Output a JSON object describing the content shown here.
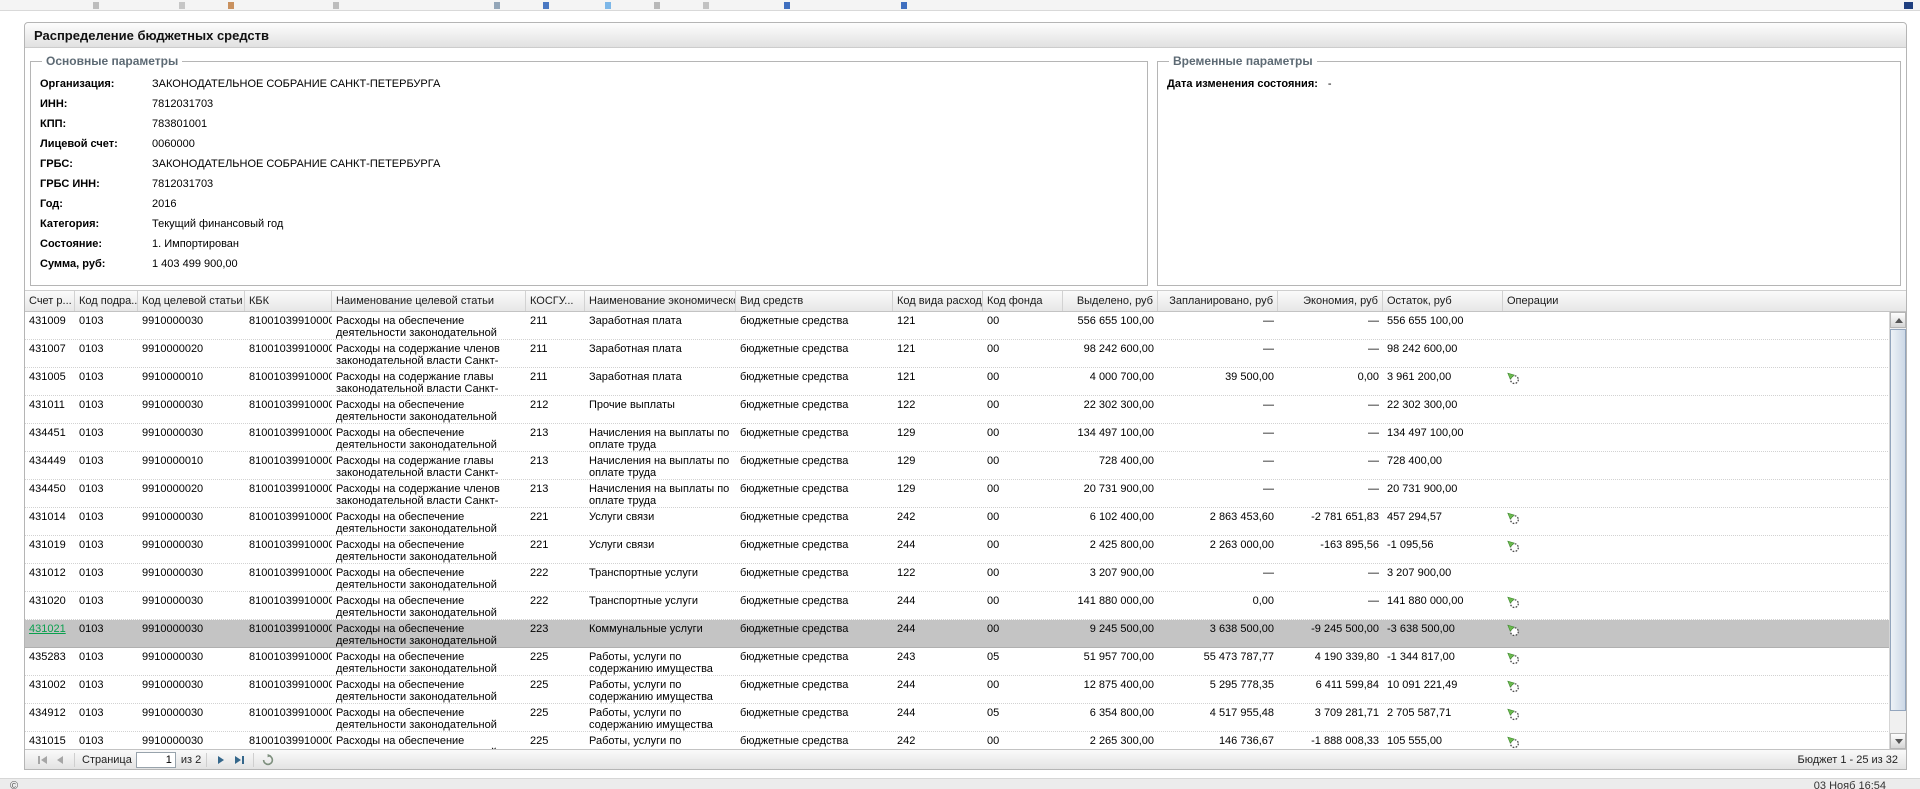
{
  "window": {
    "title": "Распределение бюджетных средств"
  },
  "main_params": {
    "legend": "Основные параметры",
    "fields": [
      {
        "label": "Организация:",
        "value": "ЗАКОНОДАТЕЛЬНОЕ СОБРАНИЕ САНКТ-ПЕТЕРБУРГА"
      },
      {
        "label": "ИНН:",
        "value": "7812031703"
      },
      {
        "label": "КПП:",
        "value": "783801001"
      },
      {
        "label": "Лицевой счет:",
        "value": "0060000"
      },
      {
        "label": "ГРБС:",
        "value": "ЗАКОНОДАТЕЛЬНОЕ СОБРАНИЕ САНКТ-ПЕТЕРБУРГА"
      },
      {
        "label": "ГРБС ИНН:",
        "value": "7812031703"
      },
      {
        "label": "Год:",
        "value": "2016"
      },
      {
        "label": "Категория:",
        "value": "Текущий финансовый год"
      },
      {
        "label": "Состояние:",
        "value": "1. Импортирован"
      },
      {
        "label": "Сумма, руб:",
        "value": "1 403 499 900,00"
      }
    ]
  },
  "time_params": {
    "legend": "Временные параметры",
    "fields": [
      {
        "label": "Дата изменения состояния:",
        "value": "-"
      }
    ]
  },
  "grid": {
    "columns": [
      "Счет р...",
      "Код подра...",
      "Код целевой статьи",
      "КБК",
      "Наименование целевой статьи",
      "КОСГУ...",
      "Наименование экономической ...",
      "Вид средств",
      "Код вида расходов",
      "Код фонда",
      "Выделено, руб",
      "Запланировано, руб",
      "Экономия, руб",
      "Остаток, руб",
      "Операции"
    ],
    "op_icon_name": "redistribute-icon",
    "rows": [
      {
        "account": "431009",
        "selected": false,
        "dept": "0103",
        "target_code": "9910000030",
        "kbk": "81001039910000...",
        "target_name": "Расходы на обеспечение деятельности законодательной власти Санкт-Петербурга",
        "kosgu": "211",
        "econ_name": "Заработная плата",
        "fund_type": "бюджетные средства",
        "expense_kind": "121",
        "fund_code": "00",
        "allocated": "556 655 100,00",
        "planned": "—",
        "savings": "—",
        "remainder": "556 655 100,00",
        "has_op": false
      },
      {
        "account": "431007",
        "selected": false,
        "dept": "0103",
        "target_code": "9910000020",
        "kbk": "81001039910000...",
        "target_name": "Расходы на содержание членов законодательной власти Санкт-Петербурга",
        "kosgu": "211",
        "econ_name": "Заработная плата",
        "fund_type": "бюджетные средства",
        "expense_kind": "121",
        "fund_code": "00",
        "allocated": "98 242 600,00",
        "planned": "—",
        "savings": "—",
        "remainder": "98 242 600,00",
        "has_op": false
      },
      {
        "account": "431005",
        "selected": false,
        "dept": "0103",
        "target_code": "9910000010",
        "kbk": "81001039910000...",
        "target_name": "Расходы на содержание главы законодательной власти Санкт-Петербурга",
        "kosgu": "211",
        "econ_name": "Заработная плата",
        "fund_type": "бюджетные средства",
        "expense_kind": "121",
        "fund_code": "00",
        "allocated": "4 000 700,00",
        "planned": "39 500,00",
        "savings": "0,00",
        "remainder": "3 961 200,00",
        "has_op": true
      },
      {
        "account": "431011",
        "selected": false,
        "dept": "0103",
        "target_code": "9910000030",
        "kbk": "81001039910000...",
        "target_name": "Расходы на обеспечение деятельности законодательной власти Санкт-Петербурга",
        "kosgu": "212",
        "econ_name": "Прочие выплаты",
        "fund_type": "бюджетные средства",
        "expense_kind": "122",
        "fund_code": "00",
        "allocated": "22 302 300,00",
        "planned": "—",
        "savings": "—",
        "remainder": "22 302 300,00",
        "has_op": false
      },
      {
        "account": "434451",
        "selected": false,
        "dept": "0103",
        "target_code": "9910000030",
        "kbk": "81001039910000...",
        "target_name": "Расходы на обеспечение деятельности законодательной власти Санкт-Петербурга",
        "kosgu": "213",
        "econ_name": "Начисления на выплаты по оплате труда",
        "fund_type": "бюджетные средства",
        "expense_kind": "129",
        "fund_code": "00",
        "allocated": "134 497 100,00",
        "planned": "—",
        "savings": "—",
        "remainder": "134 497 100,00",
        "has_op": false
      },
      {
        "account": "434449",
        "selected": false,
        "dept": "0103",
        "target_code": "9910000010",
        "kbk": "81001039910000...",
        "target_name": "Расходы на содержание главы законодательной власти Санкт-Петербурга",
        "kosgu": "213",
        "econ_name": "Начисления на выплаты по оплате труда",
        "fund_type": "бюджетные средства",
        "expense_kind": "129",
        "fund_code": "00",
        "allocated": "728 400,00",
        "planned": "—",
        "savings": "—",
        "remainder": "728 400,00",
        "has_op": false
      },
      {
        "account": "434450",
        "selected": false,
        "dept": "0103",
        "target_code": "9910000020",
        "kbk": "81001039910000...",
        "target_name": "Расходы на содержание членов законодательной власти Санкт-Петербурга",
        "kosgu": "213",
        "econ_name": "Начисления на выплаты по оплате труда",
        "fund_type": "бюджетные средства",
        "expense_kind": "129",
        "fund_code": "00",
        "allocated": "20 731 900,00",
        "planned": "—",
        "savings": "—",
        "remainder": "20 731 900,00",
        "has_op": false
      },
      {
        "account": "431014",
        "selected": false,
        "dept": "0103",
        "target_code": "9910000030",
        "kbk": "81001039910000...",
        "target_name": "Расходы на обеспечение деятельности законодательной власти Санкт-Петербурга",
        "kosgu": "221",
        "econ_name": "Услуги связи",
        "fund_type": "бюджетные средства",
        "expense_kind": "242",
        "fund_code": "00",
        "allocated": "6 102 400,00",
        "planned": "2 863 453,60",
        "savings": "-2 781 651,83",
        "remainder": "457 294,57",
        "has_op": true
      },
      {
        "account": "431019",
        "selected": false,
        "dept": "0103",
        "target_code": "9910000030",
        "kbk": "81001039910000...",
        "target_name": "Расходы на обеспечение деятельности законодательной власти Санкт-Петербурга",
        "kosgu": "221",
        "econ_name": "Услуги связи",
        "fund_type": "бюджетные средства",
        "expense_kind": "244",
        "fund_code": "00",
        "allocated": "2 425 800,00",
        "planned": "2 263 000,00",
        "savings": "-163 895,56",
        "remainder": "-1 095,56",
        "has_op": true
      },
      {
        "account": "431012",
        "selected": false,
        "dept": "0103",
        "target_code": "9910000030",
        "kbk": "81001039910000...",
        "target_name": "Расходы на обеспечение деятельности законодательной власти Санкт-Петербурга",
        "kosgu": "222",
        "econ_name": "Транспортные услуги",
        "fund_type": "бюджетные средства",
        "expense_kind": "122",
        "fund_code": "00",
        "allocated": "3 207 900,00",
        "planned": "—",
        "savings": "—",
        "remainder": "3 207 900,00",
        "has_op": false
      },
      {
        "account": "431020",
        "selected": false,
        "dept": "0103",
        "target_code": "9910000030",
        "kbk": "81001039910000...",
        "target_name": "Расходы на обеспечение деятельности законодательной власти Санкт-Петербурга",
        "kosgu": "222",
        "econ_name": "Транспортные услуги",
        "fund_type": "бюджетные средства",
        "expense_kind": "244",
        "fund_code": "00",
        "allocated": "141 880 000,00",
        "planned": "0,00",
        "savings": "—",
        "remainder": "141 880 000,00",
        "has_op": true
      },
      {
        "account": "431021",
        "selected": true,
        "dept": "0103",
        "target_code": "9910000030",
        "kbk": "81001039910000...",
        "target_name": "Расходы на обеспечение деятельности законодательной власти Санкт-Петербурга",
        "kosgu": "223",
        "econ_name": "Коммунальные услуги",
        "fund_type": "бюджетные средства",
        "expense_kind": "244",
        "fund_code": "00",
        "allocated": "9 245 500,00",
        "planned": "3 638 500,00",
        "savings": "-9 245 500,00",
        "remainder": "-3 638 500,00",
        "has_op": true
      },
      {
        "account": "435283",
        "selected": false,
        "dept": "0103",
        "target_code": "9910000030",
        "kbk": "81001039910000...",
        "target_name": "Расходы на обеспечение деятельности законодательной власти Санкт-Петербурга",
        "kosgu": "225",
        "econ_name": "Работы, услуги по содержанию имущества",
        "fund_type": "бюджетные средства",
        "expense_kind": "243",
        "fund_code": "05",
        "allocated": "51 957 700,00",
        "planned": "55 473 787,77",
        "savings": "4 190 339,80",
        "remainder": "-1 344 817,00",
        "has_op": true
      },
      {
        "account": "431002",
        "selected": false,
        "dept": "0103",
        "target_code": "9910000030",
        "kbk": "81001039910000...",
        "target_name": "Расходы на обеспечение деятельности законодательной власти Санкт-Петербурга",
        "kosgu": "225",
        "econ_name": "Работы, услуги по содержанию имущества",
        "fund_type": "бюджетные средства",
        "expense_kind": "244",
        "fund_code": "00",
        "allocated": "12 875 400,00",
        "planned": "5 295 778,35",
        "savings": "6 411 599,84",
        "remainder": "10 091 221,49",
        "has_op": true
      },
      {
        "account": "434912",
        "selected": false,
        "dept": "0103",
        "target_code": "9910000030",
        "kbk": "81001039910000...",
        "target_name": "Расходы на обеспечение деятельности законодательной власти Санкт-Петербурга",
        "kosgu": "225",
        "econ_name": "Работы, услуги по содержанию имущества",
        "fund_type": "бюджетные средства",
        "expense_kind": "244",
        "fund_code": "05",
        "allocated": "6 354 800,00",
        "planned": "4 517 955,48",
        "savings": "3 709 281,71",
        "remainder": "2 705 587,71",
        "has_op": true
      },
      {
        "account": "431015",
        "selected": false,
        "dept": "0103",
        "target_code": "9910000030",
        "kbk": "81001039910000...",
        "target_name": "Расходы на обеспечение деятельности законодательной власти Санкт-Петербурга",
        "kosgu": "225",
        "econ_name": "Работы, услуги по содержанию имущества",
        "fund_type": "бюджетные средства",
        "expense_kind": "242",
        "fund_code": "00",
        "allocated": "2 265 300,00",
        "planned": "146 736,67",
        "savings": "-1 888 008,33",
        "remainder": "105 555,00",
        "has_op": true
      }
    ]
  },
  "pager": {
    "page_label": "Страница",
    "page_value": "1",
    "of_label": "из 2",
    "range": "Бюджет 1 - 25 из 32"
  },
  "statusbar": {
    "copyright": "©",
    "clock": "03 Нояб 16:54"
  }
}
